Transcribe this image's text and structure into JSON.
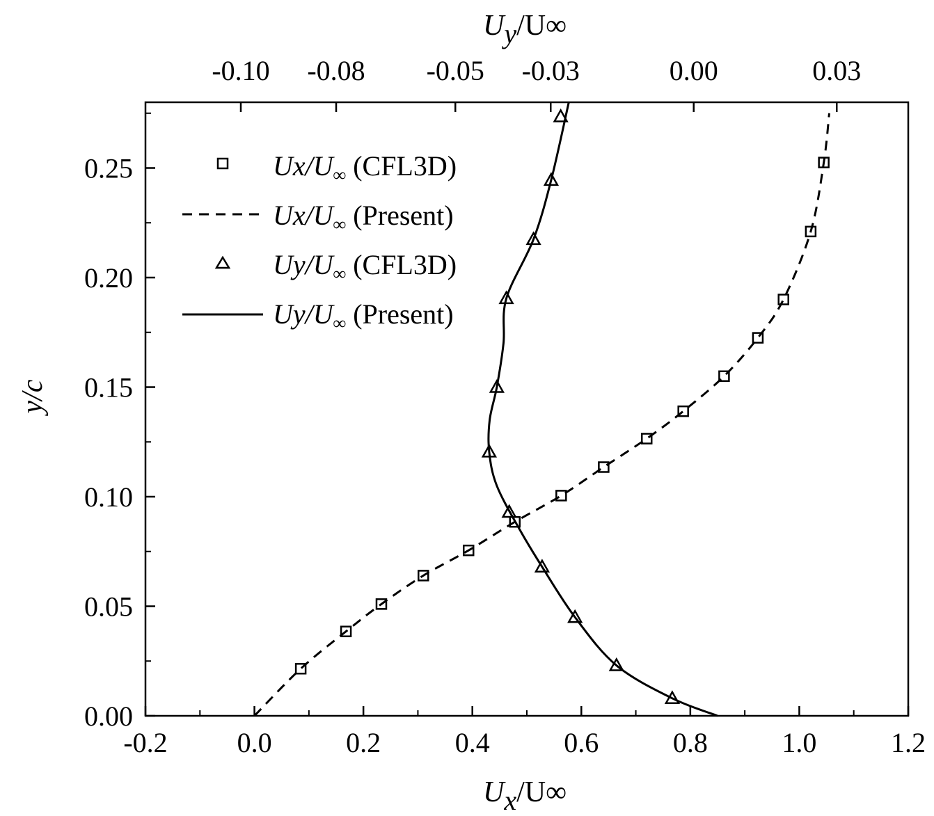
{
  "chart_data": {
    "type": "line",
    "title": "",
    "xlabel": {
      "main": "U",
      "sub": "x",
      "tail": "/U∞"
    },
    "x2label": {
      "main": "U",
      "sub": "y",
      "tail": "/U∞"
    },
    "ylabel": "y/c",
    "xlim": [
      -0.2,
      1.2
    ],
    "x2lim": [
      -0.12,
      0.04
    ],
    "ylim": [
      0.0,
      0.28
    ],
    "x_ticks": [
      "-0.2",
      "0.0",
      "0.2",
      "0.4",
      "0.6",
      "0.8",
      "1.0",
      "1.2"
    ],
    "x2_ticks": [
      "-0.10",
      "-0.08",
      "-0.05",
      "-0.03",
      "0.00",
      "0.03"
    ],
    "x2_tick_values": [
      -0.1,
      -0.08,
      -0.055,
      -0.035,
      -0.005,
      0.025
    ],
    "y_ticks": [
      "0.00",
      "0.05",
      "0.10",
      "0.15",
      "0.20",
      "0.25"
    ],
    "grid": false,
    "legend_position": "top-left",
    "legend": [
      {
        "pre": "Ux/U",
        "sub": "∞",
        "post": " (CFL3D)"
      },
      {
        "pre": "Ux/U",
        "sub": "∞",
        "post": " (Present)"
      },
      {
        "pre": "Uy/U",
        "sub": "∞",
        "post": " (CFL3D)"
      },
      {
        "pre": "Uy/U",
        "sub": "∞",
        "post": " (Present)"
      }
    ],
    "series": [
      {
        "axis": "bottom",
        "style": "square-markers",
        "x": [
          0.085,
          0.168,
          0.233,
          0.31,
          0.393,
          0.478,
          0.563,
          0.641,
          0.72,
          0.787,
          0.862,
          0.924,
          0.971,
          1.021,
          1.045
        ],
        "y": [
          0.0215,
          0.0385,
          0.051,
          0.064,
          0.0755,
          0.0885,
          0.1005,
          0.1135,
          0.1265,
          0.139,
          0.155,
          0.1725,
          0.19,
          0.221,
          0.2525
        ]
      },
      {
        "axis": "bottom",
        "style": "dashed-line",
        "x": [
          0.0,
          0.085,
          0.168,
          0.233,
          0.31,
          0.393,
          0.478,
          0.563,
          0.641,
          0.72,
          0.787,
          0.862,
          0.924,
          0.971,
          1.021,
          1.045,
          1.055
        ],
        "y": [
          0.0,
          0.0215,
          0.0385,
          0.051,
          0.064,
          0.0755,
          0.0885,
          0.1005,
          0.1135,
          0.1265,
          0.139,
          0.155,
          0.1725,
          0.19,
          0.221,
          0.2525,
          0.275
        ]
      },
      {
        "axis": "top",
        "style": "triangle-markers",
        "x": [
          -0.0095,
          -0.0212,
          -0.0299,
          -0.0368,
          -0.0437,
          -0.0479,
          -0.0463,
          -0.0443,
          -0.0386,
          -0.0349,
          -0.0329,
          -0.0296
        ],
        "y": [
          0.008,
          0.023,
          0.045,
          0.068,
          0.093,
          0.1205,
          0.15,
          0.1905,
          0.2175,
          0.2445,
          0.2735,
          0.2735
        ]
      },
      {
        "axis": "top",
        "style": "solid-line",
        "x": [
          0.0,
          -0.0095,
          -0.0212,
          -0.0299,
          -0.0368,
          -0.0415,
          -0.0463,
          -0.0479,
          -0.0478,
          -0.0463,
          -0.0449,
          -0.0443,
          -0.0386,
          -0.0349,
          -0.0312
        ],
        "y": [
          0.0,
          0.008,
          0.023,
          0.045,
          0.068,
          0.085,
          0.105,
          0.1205,
          0.135,
          0.15,
          0.17,
          0.1905,
          0.2175,
          0.2445,
          0.28
        ]
      }
    ]
  }
}
